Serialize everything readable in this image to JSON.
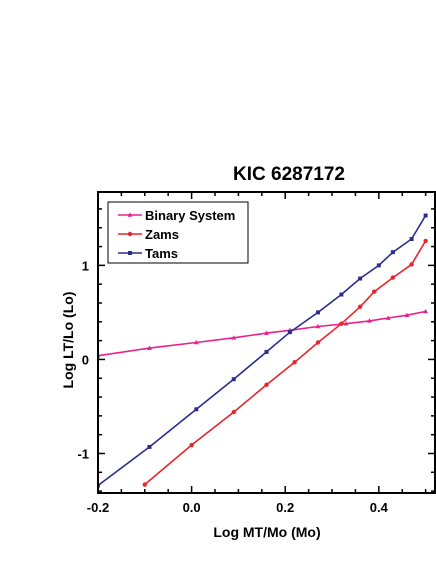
{
  "chart_data": {
    "type": "line",
    "title": "KIC 6287172",
    "xlabel": "Log MT/Mo (Mo)",
    "ylabel": "Log LT/Lo (Lo)",
    "xlim": [
      -0.2,
      0.52
    ],
    "ylim": [
      -1.42,
      1.78
    ],
    "x_ticks": [
      {
        "value": -0.2,
        "label": "-0.2"
      },
      {
        "value": 0.0,
        "label": "0.0"
      },
      {
        "value": 0.2,
        "label": "0.2"
      },
      {
        "value": 0.4,
        "label": "0.4"
      }
    ],
    "y_ticks": [
      {
        "value": -1,
        "label": "-1"
      },
      {
        "value": 0,
        "label": "0"
      },
      {
        "value": 1,
        "label": "1"
      }
    ],
    "legend_position": "top-left",
    "grid": false,
    "series": [
      {
        "name": "Binary System",
        "color": "#e8218c",
        "marker": "triangle",
        "x": [
          -0.2,
          -0.09,
          0.01,
          0.09,
          0.16,
          0.21,
          0.27,
          0.33,
          0.38,
          0.42,
          0.46,
          0.5
        ],
        "y": [
          0.04,
          0.12,
          0.18,
          0.23,
          0.28,
          0.31,
          0.35,
          0.38,
          0.41,
          0.44,
          0.47,
          0.51
        ]
      },
      {
        "name": "Zams",
        "color": "#e8242c",
        "marker": "circle",
        "x": [
          -0.1,
          0.0,
          0.09,
          0.16,
          0.22,
          0.27,
          0.32,
          0.36,
          0.39,
          0.43,
          0.47,
          0.5
        ],
        "y": [
          -1.33,
          -0.91,
          -0.56,
          -0.27,
          -0.03,
          0.18,
          0.38,
          0.56,
          0.72,
          0.87,
          1.01,
          1.26
        ]
      },
      {
        "name": "Tams",
        "color": "#2b2d8c",
        "marker": "square",
        "x": [
          -0.2,
          -0.09,
          0.01,
          0.09,
          0.16,
          0.21,
          0.27,
          0.32,
          0.36,
          0.4,
          0.43,
          0.47,
          0.5
        ],
        "y": [
          -1.34,
          -0.93,
          -0.53,
          -0.21,
          0.08,
          0.29,
          0.5,
          0.69,
          0.86,
          1.0,
          1.14,
          1.28,
          1.53
        ]
      }
    ]
  }
}
